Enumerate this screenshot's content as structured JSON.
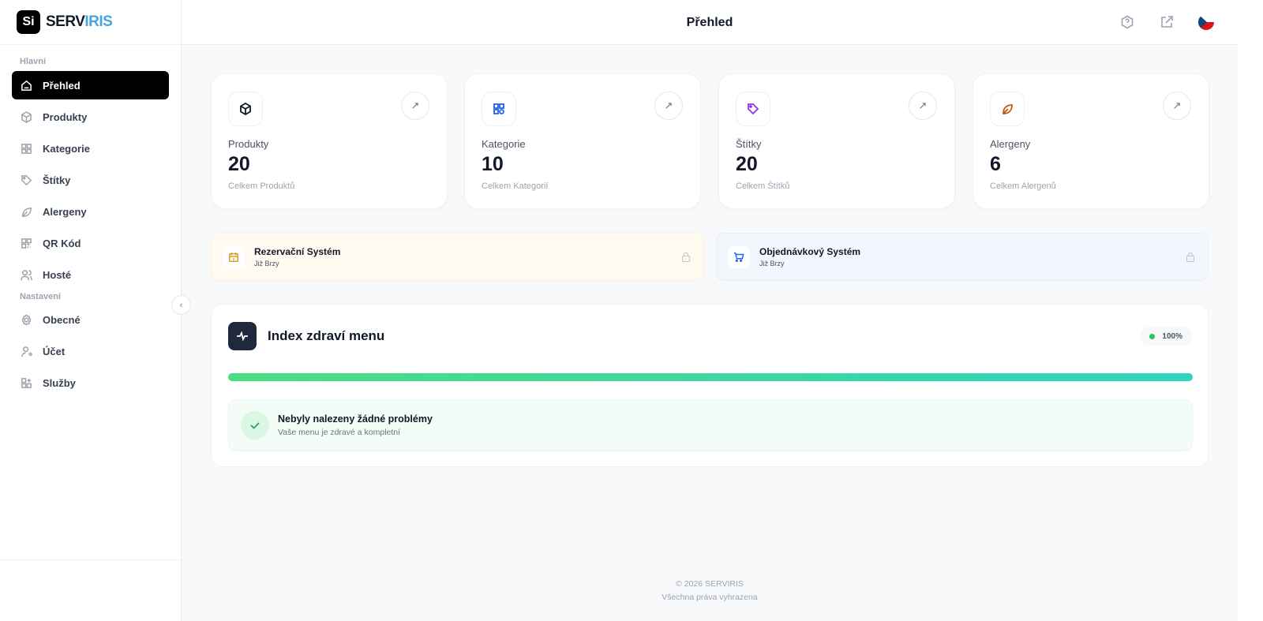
{
  "brand": {
    "mark": "Si",
    "name_a": "SERV",
    "name_b": "IRIS"
  },
  "sidebar": {
    "section_main": "Hlavní",
    "section_settings": "Nastavení",
    "items": [
      {
        "label": "Přehled",
        "icon": "home-icon",
        "active": true
      },
      {
        "label": "Produkty",
        "icon": "box-icon"
      },
      {
        "label": "Kategorie",
        "icon": "grid-icon"
      },
      {
        "label": "Štítky",
        "icon": "tag-icon"
      },
      {
        "label": "Alergeny",
        "icon": "leaf-icon"
      },
      {
        "label": "QR Kód",
        "icon": "qr-icon"
      },
      {
        "label": "Hosté",
        "icon": "users-icon"
      }
    ],
    "settings": [
      {
        "label": "Obecné",
        "icon": "gear-icon"
      },
      {
        "label": "Účet",
        "icon": "user-gear-icon"
      },
      {
        "label": "Služby",
        "icon": "grid-plus-icon"
      }
    ]
  },
  "header": {
    "title": "Přehled"
  },
  "stats": [
    {
      "label": "Produkty",
      "value": "20",
      "sub": "Celkem Produktů",
      "color": "#111827"
    },
    {
      "label": "Kategorie",
      "value": "10",
      "sub": "Celkem Kategorií",
      "color": "#2563eb"
    },
    {
      "label": "Štítky",
      "value": "20",
      "sub": "Celkem Štítků",
      "color": "#9333ea"
    },
    {
      "label": "Alergeny",
      "value": "6",
      "sub": "Celkem Alergenů",
      "color": "#c2570c"
    }
  ],
  "banners": [
    {
      "title": "Rezervační Systém",
      "sub": "Již Brzy",
      "bg": "#fffbf1",
      "accent": "#d4a02a"
    },
    {
      "title": "Objednávkový Systém",
      "sub": "Již Brzy",
      "bg": "#f2f6fd",
      "accent": "#2563eb"
    }
  ],
  "health": {
    "title": "Index zdraví menu",
    "percent_label": "100%",
    "progress": 100,
    "ok_title": "Nebyly nalezeny žádné problémy",
    "ok_sub": "Vaše menu je zdravé a kompletní"
  },
  "footer": {
    "copyright": "© 2026 SERVIRIS",
    "rights": "Všechna práva vyhrazena"
  }
}
